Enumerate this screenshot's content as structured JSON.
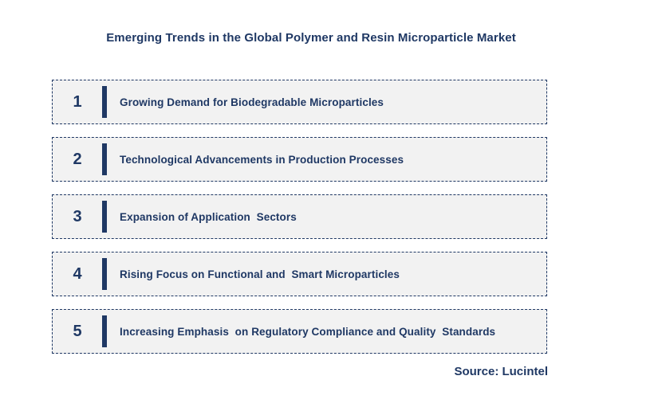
{
  "title": "Emerging Trends in the Global Polymer and Resin Microparticle Market",
  "colors": {
    "navy": "#1F3864",
    "box_bg": "#F2F2F2"
  },
  "trends": [
    {
      "number": "1",
      "label": "Growing Demand for Biodegradable Microparticles"
    },
    {
      "number": "2",
      "label": "Technological Advancements in Production Processes"
    },
    {
      "number": "3",
      "label": "Expansion of Application  Sectors"
    },
    {
      "number": "4",
      "label": "Rising Focus on Functional and  Smart Microparticles"
    },
    {
      "number": "5",
      "label": "Increasing Emphasis  on Regulatory Compliance and Quality  Standards"
    }
  ],
  "source": "Source: Lucintel"
}
